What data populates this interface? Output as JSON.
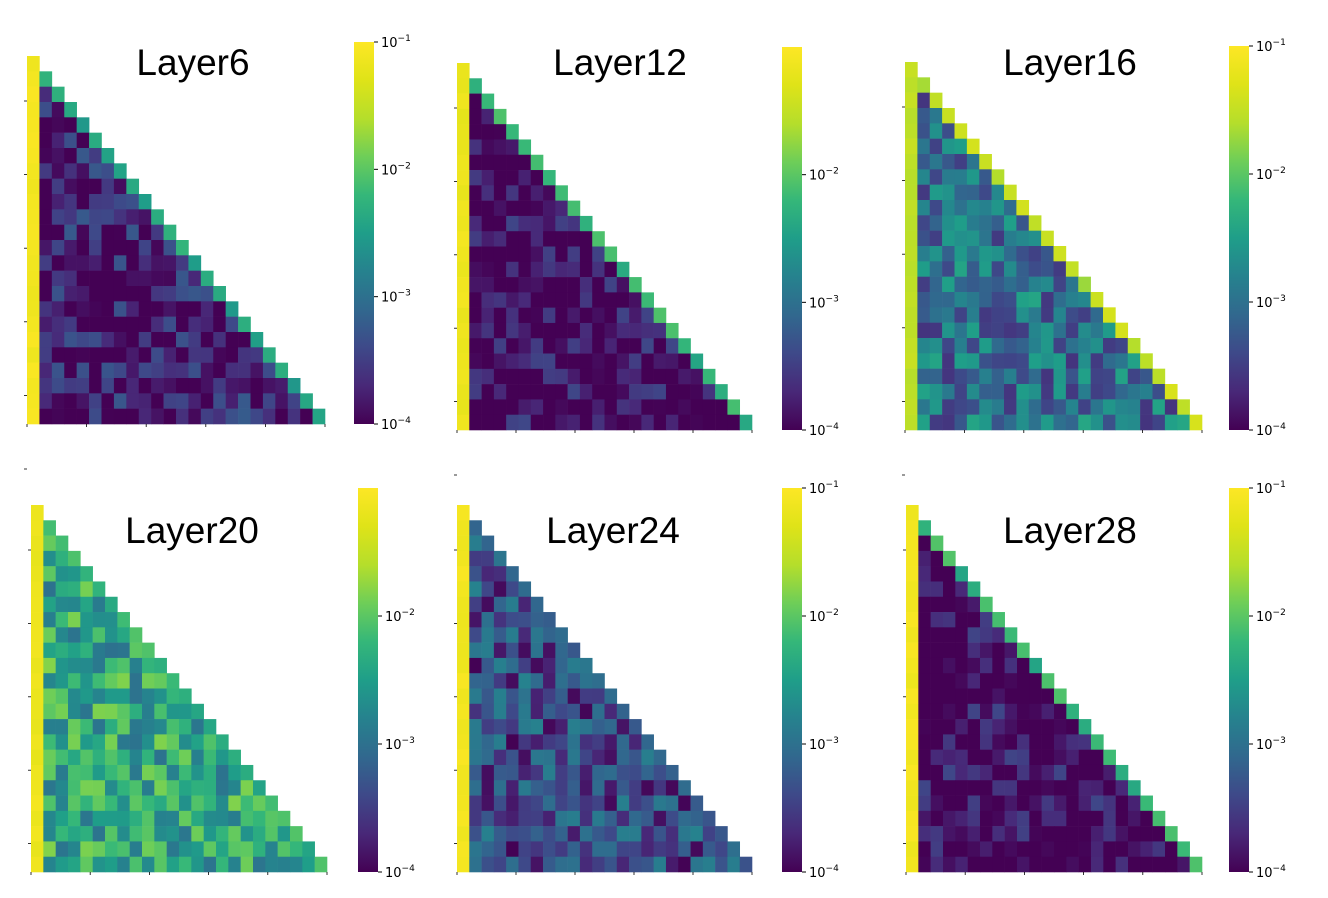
{
  "colormap": "viridis",
  "colors": {
    "viridis_low": "#440154",
    "viridis_mid": "#21918c",
    "viridis_high": "#fde725",
    "background": "#ffffff"
  },
  "chart_data": [
    {
      "type": "heatmap",
      "title": "Layer6",
      "scale": "log",
      "zlim": [
        0.0001,
        0.1
      ],
      "colorbar_ticks": [
        {
          "base": "10",
          "exp": "−1"
        },
        {
          "base": "10",
          "exp": "−2"
        },
        {
          "base": "10",
          "exp": "−3"
        },
        {
          "base": "10",
          "exp": "−4"
        }
      ],
      "mask": "lower-triangular",
      "size": 24,
      "first_column": 0.08,
      "diagonal": 0.004,
      "lower": 0.00015
    },
    {
      "type": "heatmap",
      "title": "Layer12",
      "scale": "log",
      "zlim": [
        0.0001,
        0.1
      ],
      "colorbar_ticks": [
        {
          "base": "10",
          "exp": "−2"
        },
        {
          "base": "10",
          "exp": "−3"
        },
        {
          "base": "10",
          "exp": "−4"
        }
      ],
      "mask": "lower-triangular",
      "size": 24,
      "first_column": 0.07,
      "diagonal": 0.006,
      "lower": 0.0001
    },
    {
      "type": "heatmap",
      "title": "Layer16",
      "scale": "log",
      "zlim": [
        0.0001,
        0.1
      ],
      "colorbar_ticks": [
        {
          "base": "10",
          "exp": "−1"
        },
        {
          "base": "10",
          "exp": "−2"
        },
        {
          "base": "10",
          "exp": "−3"
        },
        {
          "base": "10",
          "exp": "−4"
        }
      ],
      "mask": "lower-triangular",
      "size": 24,
      "first_column": 0.03,
      "diagonal": 0.03,
      "lower": 0.001
    },
    {
      "type": "heatmap",
      "title": "Layer20",
      "scale": "log",
      "zlim": [
        0.0001,
        0.1
      ],
      "colorbar_ticks": [
        {
          "base": "10",
          "exp": "−2"
        },
        {
          "base": "10",
          "exp": "−3"
        },
        {
          "base": "10",
          "exp": "−4"
        }
      ],
      "mask": "lower-triangular",
      "size": 24,
      "first_column": 0.07,
      "diagonal": 0.006,
      "lower": 0.004
    },
    {
      "type": "heatmap",
      "title": "Layer24",
      "scale": "log",
      "zlim": [
        0.0001,
        0.1
      ],
      "colorbar_ticks": [
        {
          "base": "10",
          "exp": "−1"
        },
        {
          "base": "10",
          "exp": "−2"
        },
        {
          "base": "10",
          "exp": "−3"
        },
        {
          "base": "10",
          "exp": "−4"
        }
      ],
      "mask": "lower-triangular",
      "size": 24,
      "first_column": 0.08,
      "diagonal": 0.0008,
      "lower": 0.0004
    },
    {
      "type": "heatmap",
      "title": "Layer28",
      "scale": "log",
      "zlim": [
        0.0001,
        0.1
      ],
      "colorbar_ticks": [
        {
          "base": "10",
          "exp": "−1"
        },
        {
          "base": "10",
          "exp": "−2"
        },
        {
          "base": "10",
          "exp": "−3"
        },
        {
          "base": "10",
          "exp": "−4"
        }
      ],
      "mask": "lower-triangular",
      "size": 24,
      "first_column": 0.08,
      "diagonal": 0.006,
      "lower": 0.0001
    }
  ]
}
